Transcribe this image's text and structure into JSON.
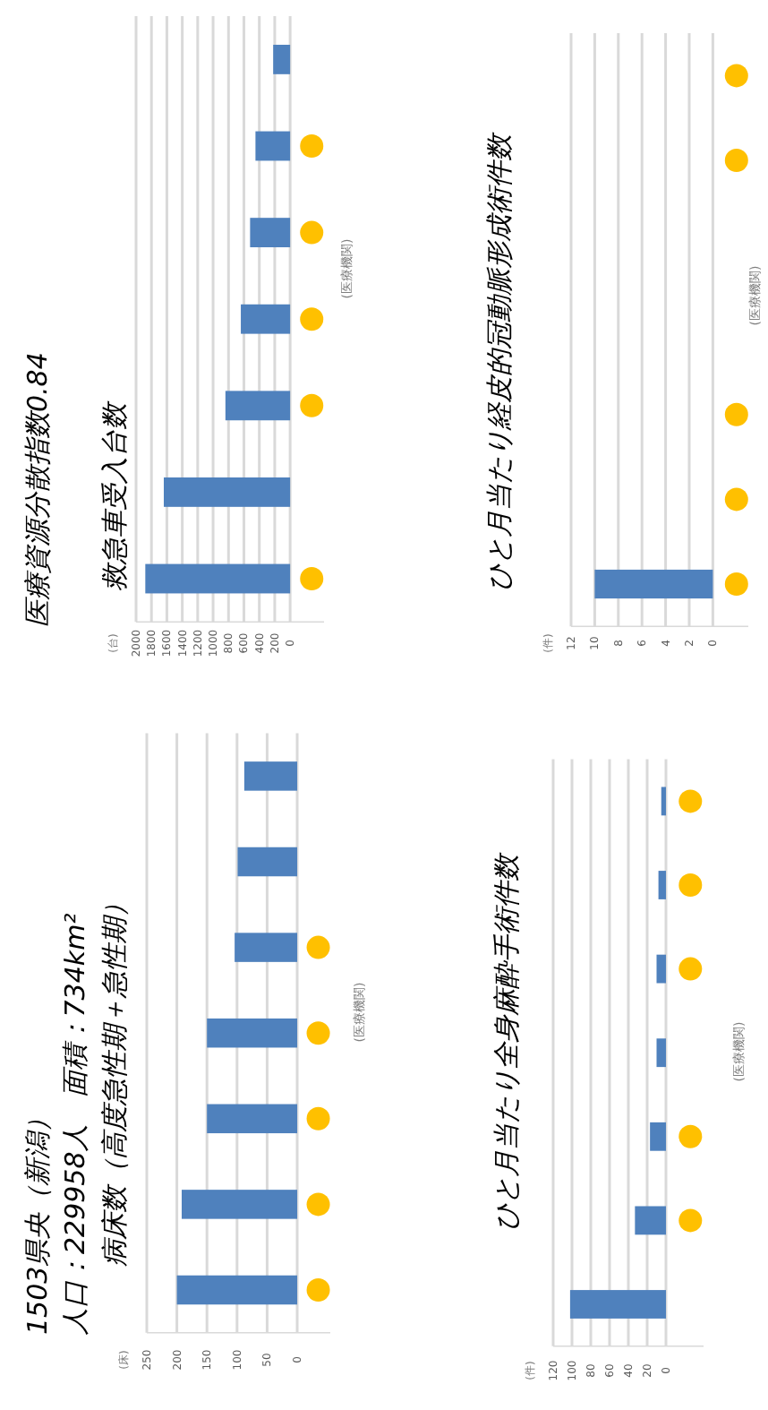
{
  "chart_data": [
    {
      "type": "bar",
      "orientation": "horizontal",
      "title": "病床数（高度急性期＋急性期）",
      "annotations": [
        "1503県央（新潟）",
        "人口：229958人　面積：734km²",
        "(床)"
      ],
      "ylabel": "(医療機関)",
      "categories": [
        null,
        null,
        null,
        null,
        null,
        null,
        null
      ],
      "xlim": [
        250,
        -55
      ],
      "xticks": [
        0,
        50,
        100,
        150,
        200,
        250
      ],
      "grid": "x",
      "series": [
        {
          "color": "#4f81bd",
          "values": [
            88,
            99,
            104,
            150,
            150,
            192,
            200
          ]
        },
        {
          "type": "scatter",
          "marker": "circle",
          "color": "#ffc000",
          "values": [
            null,
            null,
            -35,
            -35,
            -35,
            -35,
            -35
          ]
        }
      ]
    },
    {
      "type": "bar",
      "orientation": "horizontal",
      "title": "救急車受入台数",
      "annotations": [
        "医療資源分散指数0.84",
        "(台)"
      ],
      "ylabel": "(医療機関)",
      "categories": [
        null,
        null,
        null,
        null,
        null,
        null,
        null
      ],
      "xlim": [
        2000,
        -440
      ],
      "xticks": [
        0,
        200,
        400,
        600,
        800,
        1000,
        1200,
        1400,
        1600,
        1800,
        2000
      ],
      "grid": "x",
      "series": [
        {
          "color": "#4f81bd",
          "values": [
            220,
            450,
            520,
            640,
            840,
            1640,
            1880
          ]
        },
        {
          "type": "scatter",
          "marker": "circle",
          "color": "#ffc000",
          "values": [
            null,
            -280,
            -280,
            -280,
            -280,
            null,
            -280
          ]
        }
      ]
    },
    {
      "type": "bar",
      "orientation": "horizontal",
      "title": "ひと月当たり全身麻酔手術件数",
      "annotations": [
        "(件)"
      ],
      "ylabel": "(医療機関)",
      "categories": [
        null,
        null,
        null,
        null,
        null,
        null,
        null
      ],
      "xlim": [
        120,
        -40
      ],
      "xticks": [
        0,
        20,
        40,
        60,
        80,
        100,
        120
      ],
      "grid": "x",
      "series": [
        {
          "color": "#4f81bd",
          "values": [
            5,
            8,
            10,
            10,
            17,
            33,
            102
          ]
        },
        {
          "type": "scatter",
          "marker": "circle",
          "color": "#ffc000",
          "values": [
            -26,
            -26,
            -26,
            null,
            -26,
            -26,
            null
          ]
        }
      ]
    },
    {
      "type": "bar",
      "orientation": "horizontal",
      "title": "ひと月当たり経皮的冠動脈形成術件数",
      "annotations": [
        "(件)"
      ],
      "ylabel": "(医療機関)",
      "categories": [
        null,
        null,
        null,
        null,
        null,
        null,
        null
      ],
      "xlim": [
        12,
        -3
      ],
      "xticks": [
        0,
        2,
        4,
        6,
        8,
        10,
        12
      ],
      "grid": "x",
      "series": [
        {
          "color": "#4f81bd",
          "values": [
            0,
            0,
            0,
            0,
            0,
            0,
            10
          ]
        },
        {
          "type": "scatter",
          "marker": "circle",
          "color": "#ffc000",
          "values": [
            -2,
            -2,
            null,
            null,
            -2,
            -2,
            -2
          ]
        }
      ]
    }
  ]
}
